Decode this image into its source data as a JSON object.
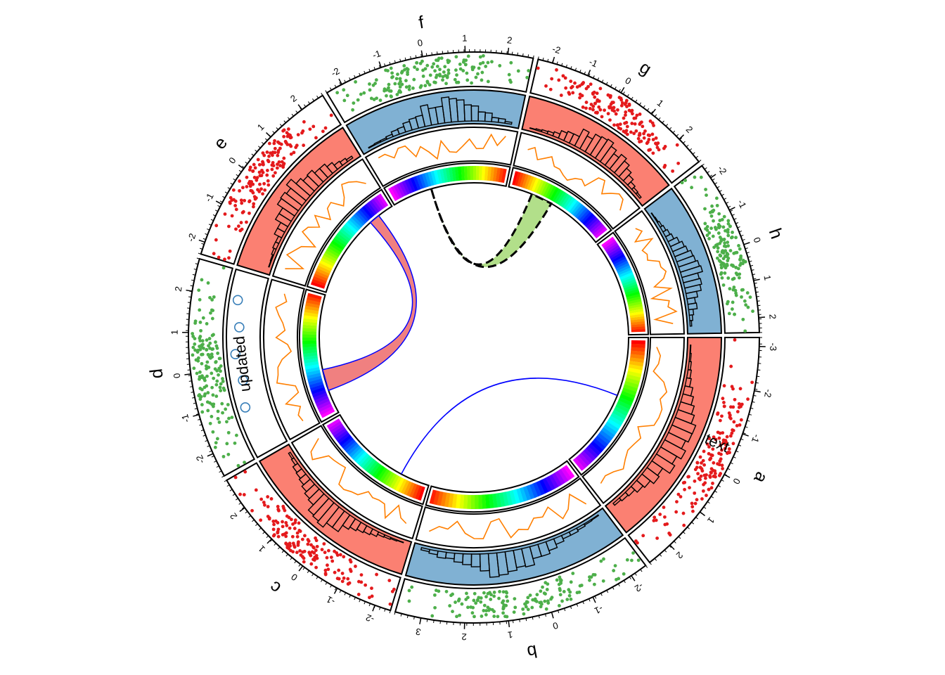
{
  "chart_data": {
    "type": "circos",
    "title": "",
    "sectors": [
      {
        "name": "a",
        "start_deg": 0,
        "end_deg": 52,
        "axis_ticks": [
          "-3",
          "-2",
          "-1",
          "0",
          "1",
          "2"
        ],
        "x_range": [
          -3.2,
          2.6
        ],
        "track1_color": "#E41A1C",
        "track2_color": "#FB8072",
        "hist_fill": true
      },
      {
        "name": "b",
        "start_deg": 53,
        "end_deg": 106,
        "axis_ticks": [
          "-2",
          "-1",
          "0",
          "1",
          "2",
          "3"
        ],
        "x_range": [
          -2.4,
          3.6
        ],
        "track1_color": "#4DAF4A",
        "track2_color": "#80B1D3",
        "hist_fill": false
      },
      {
        "name": "c",
        "start_deg": 107,
        "end_deg": 150,
        "axis_ticks": [
          "-2",
          "-1",
          "0",
          "1",
          "2"
        ],
        "x_range": [
          -2.4,
          2.8
        ],
        "track1_color": "#E41A1C",
        "track2_color": "#FB8072",
        "hist_fill": true
      },
      {
        "name": "d",
        "start_deg": 151,
        "end_deg": 196,
        "axis_ticks": [
          "-2",
          "-1",
          "0",
          "1",
          "2"
        ],
        "x_range": [
          -2.6,
          2.8
        ],
        "track1_color": "#4DAF4A",
        "track2_color": "#FFFFFF",
        "hist_fill": false
      },
      {
        "name": "e",
        "start_deg": 197,
        "end_deg": 238,
        "axis_ticks": [
          "-2",
          "-1",
          "0",
          "1",
          "2"
        ],
        "x_range": [
          -2.3,
          2.6
        ],
        "track1_color": "#E41A1C",
        "track2_color": "#FB8072",
        "hist_fill": true
      },
      {
        "name": "f",
        "start_deg": 239,
        "end_deg": 282,
        "axis_ticks": [
          "-2",
          "-1",
          "0",
          "1",
          "2"
        ],
        "x_range": [
          -2.4,
          2.6
        ],
        "track1_color": "#4DAF4A",
        "track2_color": "#80B1D3",
        "hist_fill": true
      },
      {
        "name": "g",
        "start_deg": 283,
        "end_deg": 322,
        "axis_ticks": [
          "-2",
          "-1",
          "0",
          "1",
          "2"
        ],
        "x_range": [
          -2.4,
          2.8
        ],
        "track1_color": "#E41A1C",
        "track2_color": "#FB8072",
        "hist_fill": true
      },
      {
        "name": "h",
        "start_deg": 323,
        "end_deg": 359,
        "axis_ticks": [
          "-2",
          "-1",
          "0",
          "1",
          "2"
        ],
        "x_range": [
          -2.4,
          2.4
        ],
        "track1_color": "#4DAF4A",
        "track2_color": "#80B1D3",
        "hist_fill": true
      }
    ],
    "tracks": [
      {
        "name": "points",
        "kind": "scatter"
      },
      {
        "name": "histogram",
        "kind": "histogram"
      },
      {
        "name": "lines",
        "kind": "line",
        "color": "#FF7F00"
      },
      {
        "name": "rainbow",
        "kind": "heatmap"
      }
    ],
    "annotations": {
      "text_label": "updated",
      "text_label_sector": "d",
      "vertical_label": "text",
      "vertical_label_sector": "a",
      "circles_sector": "d",
      "circles_color": "#377EB8"
    },
    "links": [
      {
        "type": "ribbon",
        "from_deg": [
          228,
          232
        ],
        "to_deg": [
          160,
          168
        ],
        "fill": "#F08080",
        "border": "#0000FF"
      },
      {
        "type": "line",
        "from_deg": [
          118,
          118
        ],
        "to_deg": [
          22,
          22
        ],
        "fill": "none",
        "border": "#0000FF"
      },
      {
        "type": "ribbon",
        "from_deg": [
          254,
          254
        ],
        "to_deg": [
          292,
          300
        ],
        "fill": "#B2DF8A",
        "border": "#000000",
        "dashed": true
      }
    ],
    "legend": "none",
    "grid": false
  }
}
